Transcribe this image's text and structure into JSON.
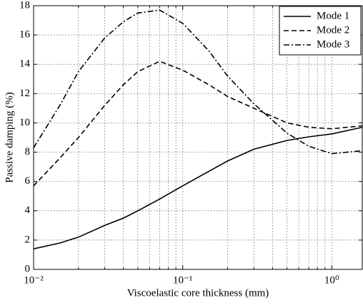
{
  "chart_data": {
    "type": "line",
    "xlabel": "Viscoelastic core thickness (mm)",
    "ylabel": "Passive damping (%)",
    "x": [
      0.01,
      0.015,
      0.02,
      0.03,
      0.04,
      0.05,
      0.07,
      0.1,
      0.15,
      0.2,
      0.3,
      0.5,
      0.7,
      1,
      1.6
    ],
    "series": [
      {
        "name": "Mode 1",
        "color": "#000000",
        "dash": "solid",
        "values": [
          1.4,
          1.8,
          2.2,
          3.0,
          3.5,
          4.0,
          4.8,
          5.7,
          6.7,
          7.4,
          8.2,
          8.8,
          9.05,
          9.25,
          9.7
        ]
      },
      {
        "name": "Mode 2",
        "color": "#000000",
        "dash": "dashed",
        "values": [
          5.7,
          7.6,
          9.0,
          11.2,
          12.6,
          13.5,
          14.2,
          13.6,
          12.6,
          11.8,
          11.0,
          10.0,
          9.7,
          9.6,
          9.8
        ]
      },
      {
        "name": "Mode 3",
        "color": "#000000",
        "dash": "dashdot",
        "values": [
          8.3,
          11.2,
          13.5,
          15.8,
          16.9,
          17.5,
          17.7,
          16.8,
          14.9,
          13.2,
          11.3,
          9.3,
          8.4,
          7.9,
          8.1
        ]
      }
    ],
    "xscale": "log",
    "xlim": [
      0.01,
      1.6
    ],
    "xticks": [
      {
        "value": 0.01,
        "label": "10⁻²"
      },
      {
        "value": 0.1,
        "label": "10⁻¹"
      },
      {
        "value": 1,
        "label": "10⁰"
      }
    ],
    "ylim": [
      0,
      18
    ],
    "yticks": [
      0,
      2,
      4,
      6,
      8,
      10,
      12,
      14,
      16,
      18
    ],
    "grid": true,
    "legend": "upper right"
  }
}
